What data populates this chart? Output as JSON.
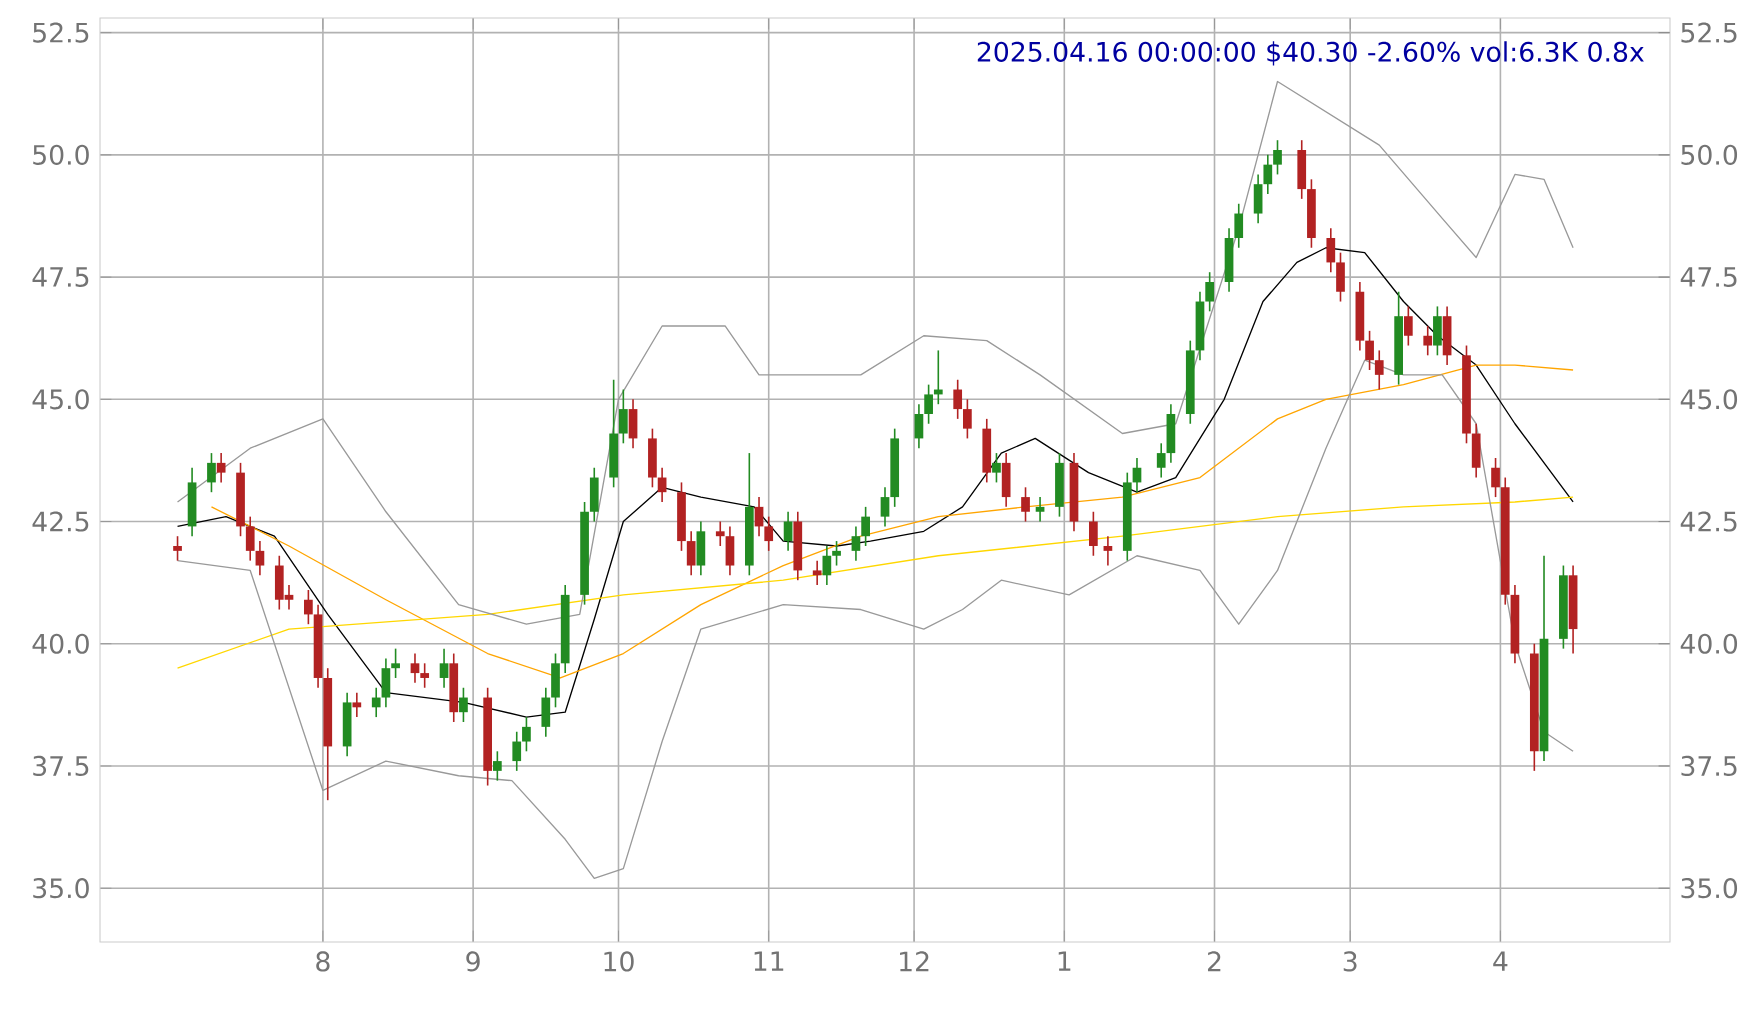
{
  "chart_data": {
    "type": "candlestick",
    "annotations": [
      "2025.04.16 00:00:00 $40.30 -2.60% vol:6.3K 0.8x"
    ],
    "x": [
      "2024-07-02",
      "2024-07-05",
      "2024-07-09",
      "2024-07-11",
      "2024-07-15",
      "2024-07-17",
      "2024-07-19",
      "2024-07-23",
      "2024-07-25",
      "2024-07-29",
      "2024-07-31",
      "2024-08-02",
      "2024-08-06",
      "2024-08-08",
      "2024-08-12",
      "2024-08-14",
      "2024-08-16",
      "2024-08-20",
      "2024-08-22",
      "2024-08-26",
      "2024-08-28",
      "2024-08-30",
      "2024-09-04",
      "2024-09-06",
      "2024-09-10",
      "2024-09-12",
      "2024-09-16",
      "2024-09-18",
      "2024-09-20",
      "2024-09-24",
      "2024-09-26",
      "2024-09-30",
      "2024-10-02",
      "2024-10-04",
      "2024-10-08",
      "2024-10-10",
      "2024-10-14",
      "2024-10-16",
      "2024-10-18",
      "2024-10-22",
      "2024-10-24",
      "2024-10-28",
      "2024-10-30",
      "2024-11-01",
      "2024-11-05",
      "2024-11-07",
      "2024-11-11",
      "2024-11-13",
      "2024-11-15",
      "2024-11-19",
      "2024-11-21",
      "2024-11-25",
      "2024-11-27",
      "2024-12-02",
      "2024-12-04",
      "2024-12-06",
      "2024-12-10",
      "2024-12-12",
      "2024-12-16",
      "2024-12-18",
      "2024-12-20",
      "2024-12-24",
      "2024-12-27",
      "2024-12-31",
      "2025-01-03",
      "2025-01-07",
      "2025-01-10",
      "2025-01-14",
      "2025-01-16",
      "2025-01-21",
      "2025-01-23",
      "2025-01-27",
      "2025-01-29",
      "2025-01-31",
      "2025-02-04",
      "2025-02-06",
      "2025-02-10",
      "2025-02-12",
      "2025-02-14",
      "2025-02-19",
      "2025-02-21",
      "2025-02-25",
      "2025-02-27",
      "2025-03-03",
      "2025-03-05",
      "2025-03-07",
      "2025-03-11",
      "2025-03-13",
      "2025-03-17",
      "2025-03-19",
      "2025-03-21",
      "2025-03-25",
      "2025-03-27",
      "2025-03-31",
      "2025-04-02",
      "2025-04-04",
      "2025-04-08",
      "2025-04-10",
      "2025-04-14",
      "2025-04-16"
    ],
    "ohlc": [
      [
        42.0,
        42.2,
        41.7,
        41.9
      ],
      [
        42.4,
        43.6,
        42.2,
        43.3
      ],
      [
        43.3,
        43.9,
        43.1,
        43.7
      ],
      [
        43.7,
        43.9,
        43.3,
        43.5
      ],
      [
        43.5,
        43.7,
        42.2,
        42.4
      ],
      [
        42.4,
        42.6,
        41.7,
        41.9
      ],
      [
        41.9,
        42.1,
        41.4,
        41.6
      ],
      [
        41.6,
        41.8,
        40.7,
        40.9
      ],
      [
        41.0,
        41.2,
        40.7,
        40.9
      ],
      [
        40.9,
        41.1,
        40.4,
        40.6
      ],
      [
        40.6,
        40.8,
        39.1,
        39.3
      ],
      [
        39.3,
        39.5,
        36.8,
        37.9
      ],
      [
        37.9,
        39.0,
        37.7,
        38.8
      ],
      [
        38.8,
        39.0,
        38.5,
        38.7
      ],
      [
        38.7,
        39.1,
        38.5,
        38.9
      ],
      [
        38.9,
        39.7,
        38.7,
        39.5
      ],
      [
        39.5,
        39.9,
        39.3,
        39.6
      ],
      [
        39.6,
        39.8,
        39.2,
        39.4
      ],
      [
        39.4,
        39.6,
        39.1,
        39.3
      ],
      [
        39.3,
        39.9,
        39.1,
        39.6
      ],
      [
        39.6,
        39.8,
        38.4,
        38.6
      ],
      [
        38.6,
        39.1,
        38.4,
        38.9
      ],
      [
        38.9,
        39.1,
        37.1,
        37.4
      ],
      [
        37.4,
        37.8,
        37.2,
        37.6
      ],
      [
        37.6,
        38.2,
        37.4,
        38.0
      ],
      [
        38.0,
        38.5,
        37.8,
        38.3
      ],
      [
        38.3,
        39.1,
        38.1,
        38.9
      ],
      [
        38.9,
        39.8,
        38.7,
        39.6
      ],
      [
        39.6,
        41.2,
        39.4,
        41.0
      ],
      [
        41.0,
        42.9,
        40.8,
        42.7
      ],
      [
        42.7,
        43.6,
        42.5,
        43.4
      ],
      [
        43.4,
        45.4,
        43.2,
        44.3
      ],
      [
        44.3,
        45.2,
        44.1,
        44.8
      ],
      [
        44.8,
        45.0,
        44.0,
        44.2
      ],
      [
        44.2,
        44.4,
        43.2,
        43.4
      ],
      [
        43.4,
        43.6,
        42.9,
        43.1
      ],
      [
        43.1,
        43.3,
        41.9,
        42.1
      ],
      [
        42.1,
        42.3,
        41.4,
        41.6
      ],
      [
        41.6,
        42.5,
        41.4,
        42.3
      ],
      [
        42.3,
        42.5,
        42.0,
        42.2
      ],
      [
        42.2,
        42.4,
        41.4,
        41.6
      ],
      [
        41.6,
        43.9,
        41.4,
        42.8
      ],
      [
        42.8,
        43.0,
        42.2,
        42.4
      ],
      [
        42.4,
        42.6,
        41.9,
        42.1
      ],
      [
        42.1,
        42.7,
        41.9,
        42.5
      ],
      [
        42.5,
        42.7,
        41.3,
        41.5
      ],
      [
        41.5,
        41.7,
        41.2,
        41.4
      ],
      [
        41.4,
        42.0,
        41.2,
        41.8
      ],
      [
        41.8,
        42.1,
        41.6,
        41.9
      ],
      [
        41.9,
        42.4,
        41.7,
        42.2
      ],
      [
        42.2,
        42.8,
        42.0,
        42.6
      ],
      [
        42.6,
        43.2,
        42.4,
        43.0
      ],
      [
        43.0,
        44.4,
        42.8,
        44.2
      ],
      [
        44.2,
        44.9,
        44.0,
        44.7
      ],
      [
        44.7,
        45.3,
        44.5,
        45.1
      ],
      [
        45.1,
        46.0,
        44.9,
        45.2
      ],
      [
        45.2,
        45.4,
        44.6,
        44.8
      ],
      [
        44.8,
        45.0,
        44.2,
        44.4
      ],
      [
        44.4,
        44.6,
        43.3,
        43.5
      ],
      [
        43.5,
        43.9,
        43.3,
        43.7
      ],
      [
        43.7,
        43.9,
        42.8,
        43.0
      ],
      [
        43.0,
        43.2,
        42.5,
        42.7
      ],
      [
        42.7,
        43.0,
        42.5,
        42.8
      ],
      [
        42.8,
        43.9,
        42.6,
        43.7
      ],
      [
        43.7,
        43.9,
        42.3,
        42.5
      ],
      [
        42.5,
        42.7,
        41.8,
        42.0
      ],
      [
        42.0,
        42.2,
        41.6,
        41.9
      ],
      [
        41.9,
        43.5,
        41.7,
        43.3
      ],
      [
        43.3,
        43.8,
        43.1,
        43.6
      ],
      [
        43.6,
        44.1,
        43.4,
        43.9
      ],
      [
        43.9,
        44.9,
        43.7,
        44.7
      ],
      [
        44.7,
        46.2,
        44.5,
        46.0
      ],
      [
        46.0,
        47.2,
        45.8,
        47.0
      ],
      [
        47.0,
        47.6,
        46.8,
        47.4
      ],
      [
        47.4,
        48.5,
        47.2,
        48.3
      ],
      [
        48.3,
        49.0,
        48.1,
        48.8
      ],
      [
        48.8,
        49.6,
        48.6,
        49.4
      ],
      [
        49.4,
        50.0,
        49.2,
        49.8
      ],
      [
        49.8,
        50.3,
        49.6,
        50.1
      ],
      [
        50.1,
        50.3,
        49.1,
        49.3
      ],
      [
        49.3,
        49.5,
        48.1,
        48.3
      ],
      [
        48.3,
        48.5,
        47.6,
        47.8
      ],
      [
        47.8,
        48.0,
        47.0,
        47.2
      ],
      [
        47.2,
        47.4,
        46.0,
        46.2
      ],
      [
        46.2,
        46.4,
        45.6,
        45.8
      ],
      [
        45.8,
        46.0,
        45.2,
        45.5
      ],
      [
        45.5,
        47.2,
        45.3,
        46.7
      ],
      [
        46.7,
        46.9,
        46.1,
        46.3
      ],
      [
        46.3,
        46.5,
        45.9,
        46.1
      ],
      [
        46.1,
        46.9,
        45.9,
        46.7
      ],
      [
        46.7,
        46.9,
        45.7,
        45.9
      ],
      [
        45.9,
        46.1,
        44.1,
        44.3
      ],
      [
        44.3,
        44.5,
        43.4,
        43.6
      ],
      [
        43.6,
        43.8,
        43.0,
        43.2
      ],
      [
        43.2,
        43.4,
        40.8,
        41.0
      ],
      [
        41.0,
        41.2,
        39.6,
        39.8
      ],
      [
        39.8,
        40.0,
        37.4,
        37.8
      ],
      [
        37.8,
        41.8,
        37.6,
        40.1
      ],
      [
        40.1,
        41.6,
        39.9,
        41.4
      ],
      [
        41.4,
        41.6,
        39.8,
        40.3
      ]
    ],
    "series": [
      {
        "type": "line",
        "color": "#000000",
        "x": [
          "2024-07-02",
          "2024-07-12",
          "2024-07-22",
          "2024-08-02",
          "2024-08-14",
          "2024-08-30",
          "2024-09-12",
          "2024-09-20",
          "2024-09-26",
          "2024-10-02",
          "2024-10-10",
          "2024-10-18",
          "2024-10-29",
          "2024-11-04",
          "2024-11-15",
          "2024-11-22",
          "2024-12-03",
          "2024-12-11",
          "2024-12-19",
          "2024-12-26",
          "2025-01-06",
          "2025-01-16",
          "2025-01-24",
          "2025-02-03",
          "2025-02-11",
          "2025-02-18",
          "2025-02-24",
          "2025-03-04",
          "2025-03-12",
          "2025-03-19",
          "2025-03-27",
          "2025-04-04",
          "2025-04-16"
        ],
        "values": [
          42.4,
          42.6,
          42.2,
          40.6,
          39.0,
          38.8,
          38.5,
          38.6,
          40.5,
          42.5,
          43.2,
          43.0,
          42.8,
          42.1,
          42.0,
          42.1,
          42.3,
          42.8,
          43.9,
          44.2,
          43.5,
          43.1,
          43.4,
          45.0,
          47.0,
          47.8,
          48.1,
          48.0,
          47.0,
          46.3,
          45.7,
          44.5,
          42.9
        ]
      },
      {
        "type": "line",
        "color": "#ffa500",
        "x": [
          "2024-07-09",
          "2024-07-25",
          "2024-08-14",
          "2024-09-04",
          "2024-09-19",
          "2024-10-02",
          "2024-10-18",
          "2024-11-04",
          "2024-11-20",
          "2024-12-06",
          "2024-12-24",
          "2025-01-13",
          "2025-01-29",
          "2025-02-14",
          "2025-02-24",
          "2025-03-12",
          "2025-03-27",
          "2025-04-04",
          "2025-04-16"
        ],
        "values": [
          42.8,
          42.0,
          40.9,
          39.8,
          39.3,
          39.8,
          40.8,
          41.6,
          42.2,
          42.6,
          42.8,
          43.0,
          43.4,
          44.6,
          45.0,
          45.3,
          45.7,
          45.7,
          45.6
        ]
      },
      {
        "type": "line",
        "color": "#ffd700",
        "x": [
          "2024-07-02",
          "2024-07-25",
          "2024-09-04",
          "2024-10-02",
          "2024-11-04",
          "2024-12-06",
          "2025-01-13",
          "2025-02-14",
          "2025-03-12",
          "2025-04-04",
          "2025-04-16"
        ],
        "values": [
          39.5,
          40.3,
          40.6,
          41.0,
          41.3,
          41.8,
          42.2,
          42.6,
          42.8,
          42.9,
          43.0
        ]
      },
      {
        "type": "line",
        "color": "#999999",
        "x": [
          "2024-07-02",
          "2024-07-17",
          "2024-08-01",
          "2024-08-14",
          "2024-08-29",
          "2024-09-12",
          "2024-09-23",
          "2024-10-01",
          "2024-10-10",
          "2024-10-23",
          "2024-10-30",
          "2024-11-07",
          "2024-11-20",
          "2024-12-03",
          "2024-12-16",
          "2024-12-27",
          "2025-01-13",
          "2025-01-24",
          "2025-02-06",
          "2025-02-14",
          "2025-03-07",
          "2025-03-20",
          "2025-03-27",
          "2025-04-04",
          "2025-04-10",
          "2025-04-16"
        ],
        "values": [
          42.9,
          44.0,
          44.6,
          42.7,
          40.8,
          40.4,
          40.6,
          45.0,
          46.5,
          46.5,
          45.5,
          45.5,
          45.5,
          46.3,
          46.2,
          45.5,
          44.3,
          44.5,
          48.5,
          51.5,
          50.2,
          48.7,
          47.9,
          49.6,
          49.5,
          48.1
        ]
      },
      {
        "type": "line",
        "color": "#999999",
        "x": [
          "2024-07-02",
          "2024-07-17",
          "2024-08-01",
          "2024-08-14",
          "2024-08-29",
          "2024-09-09",
          "2024-09-20",
          "2024-09-26",
          "2024-10-02",
          "2024-10-10",
          "2024-10-18",
          "2024-11-04",
          "2024-11-20",
          "2024-12-03",
          "2024-12-11",
          "2024-12-19",
          "2025-01-02",
          "2025-01-16",
          "2025-01-29",
          "2025-02-06",
          "2025-02-14",
          "2025-02-24",
          "2025-03-04",
          "2025-03-12",
          "2025-03-20",
          "2025-03-27",
          "2025-04-04",
          "2025-04-10",
          "2025-04-16"
        ],
        "values": [
          41.7,
          41.5,
          37.0,
          37.6,
          37.3,
          37.2,
          36.0,
          35.2,
          35.4,
          38.0,
          40.3,
          40.8,
          40.7,
          40.3,
          40.7,
          41.3,
          41.0,
          41.8,
          41.5,
          40.4,
          41.5,
          44.0,
          45.8,
          45.5,
          45.5,
          44.5,
          40.0,
          38.2,
          37.8
        ]
      }
    ],
    "xlim": [
      "2024-06-16",
      "2025-05-06"
    ],
    "xticks": [
      {
        "value": "2024-08-01",
        "label": "8"
      },
      {
        "value": "2024-09-01",
        "label": "9"
      },
      {
        "value": "2024-10-01",
        "label": "10"
      },
      {
        "value": "2024-11-01",
        "label": "11"
      },
      {
        "value": "2024-12-01",
        "label": "12"
      },
      {
        "value": "2025-01-01",
        "label": "1"
      },
      {
        "value": "2025-02-01",
        "label": "2"
      },
      {
        "value": "2025-03-01",
        "label": "3"
      },
      {
        "value": "2025-04-01",
        "label": "4"
      }
    ],
    "ylim": [
      33.9,
      52.8
    ],
    "yticks": [
      {
        "value": 35,
        "label": "35.0"
      },
      {
        "value": 37.5,
        "label": "37.5"
      },
      {
        "value": 40,
        "label": "40.0"
      },
      {
        "value": 42.5,
        "label": "42.5"
      },
      {
        "value": 45,
        "label": "45.0"
      },
      {
        "value": 47.5,
        "label": "47.5"
      },
      {
        "value": 50,
        "label": "50.0"
      },
      {
        "value": 52.5,
        "label": "52.5"
      }
    ],
    "y2lim": [
      33.9,
      52.8
    ],
    "y2ticks": [
      {
        "value": 35,
        "label": "35.0"
      },
      {
        "value": 37.5,
        "label": "37.5"
      },
      {
        "value": 40,
        "label": "40.0"
      },
      {
        "value": 42.5,
        "label": "42.5"
      },
      {
        "value": 45,
        "label": "45.0"
      },
      {
        "value": 47.5,
        "label": "47.5"
      },
      {
        "value": 50,
        "label": "50.0"
      },
      {
        "value": 52.5,
        "label": "52.5"
      }
    ],
    "grid": true
  }
}
